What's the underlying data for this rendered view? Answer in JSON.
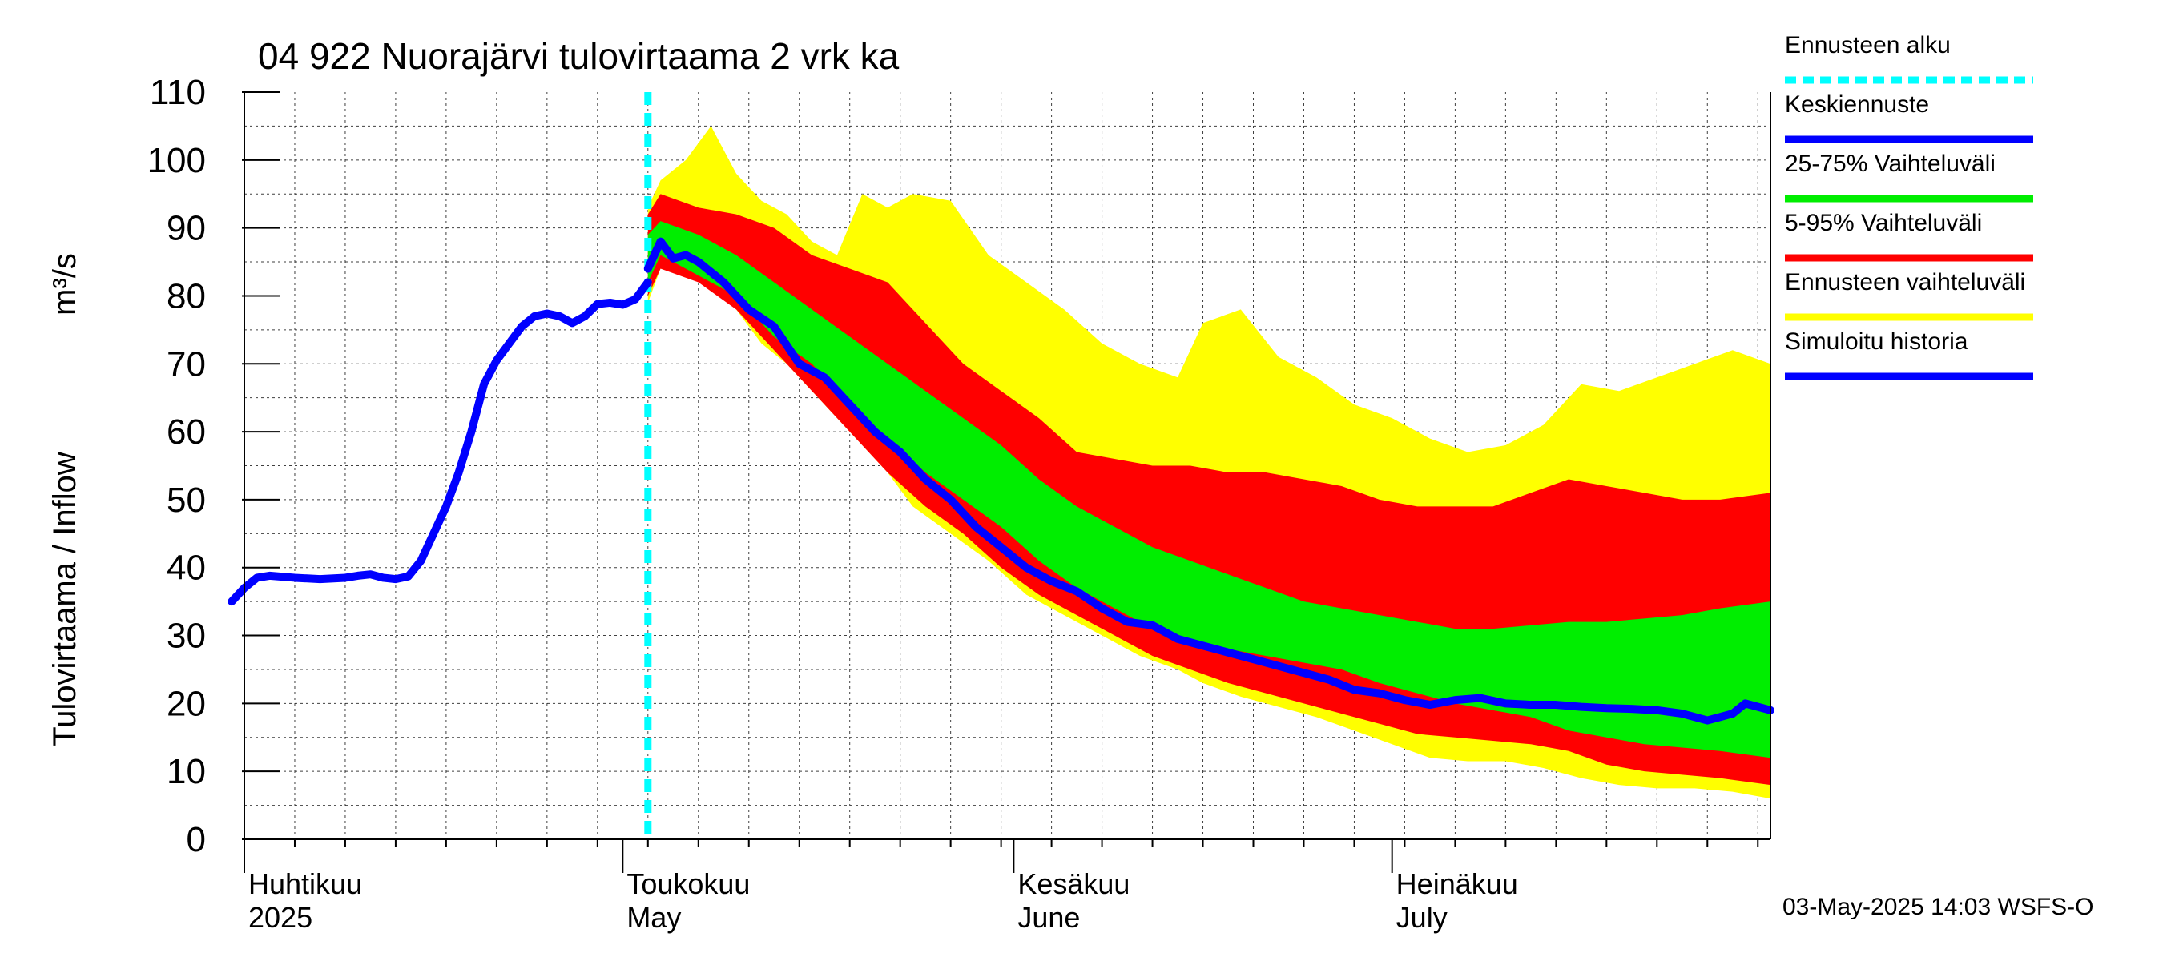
{
  "chart_data": {
    "type": "area",
    "title": "04 922 Nuorajärvi tulovirtaama 2 vrk ka",
    "ylabel": "Tulovirtaama / Inflow",
    "yunit": "m³/s",
    "ylim": [
      0,
      110
    ],
    "yticks": [
      0,
      10,
      20,
      30,
      40,
      50,
      60,
      70,
      80,
      90,
      100,
      110
    ],
    "xlim": [
      "2025-04-01",
      "2025-07-31"
    ],
    "month_ticks": [
      {
        "date": "2025-04-01",
        "fi": "Huhtikuu",
        "en": "2025"
      },
      {
        "date": "2025-05-01",
        "fi": "Toukokuu",
        "en": "May"
      },
      {
        "date": "2025-06-01",
        "fi": "Kesäkuu",
        "en": "June"
      },
      {
        "date": "2025-07-01",
        "fi": "Heinäkuu",
        "en": "July"
      }
    ],
    "forecast_start": "2025-05-03",
    "grid": true,
    "legend_position": "right",
    "series": [
      {
        "name": "Simuloitu historia",
        "kind": "line",
        "color": "#0000ff",
        "points": [
          [
            "2025-03-31",
            35
          ],
          [
            "2025-04-01",
            37
          ],
          [
            "2025-04-02",
            38.5
          ],
          [
            "2025-04-03",
            38.8
          ],
          [
            "2025-04-05",
            38.5
          ],
          [
            "2025-04-07",
            38.3
          ],
          [
            "2025-04-09",
            38.5
          ],
          [
            "2025-04-10",
            38.8
          ],
          [
            "2025-04-11",
            39
          ],
          [
            "2025-04-12",
            38.5
          ],
          [
            "2025-04-13",
            38.3
          ],
          [
            "2025-04-14",
            38.7
          ],
          [
            "2025-04-15",
            41
          ],
          [
            "2025-04-16",
            45
          ],
          [
            "2025-04-17",
            49
          ],
          [
            "2025-04-18",
            54
          ],
          [
            "2025-04-19",
            60
          ],
          [
            "2025-04-20",
            67
          ],
          [
            "2025-04-21",
            70.5
          ],
          [
            "2025-04-22",
            73
          ],
          [
            "2025-04-23",
            75.5
          ],
          [
            "2025-04-24",
            77
          ],
          [
            "2025-04-25",
            77.4
          ],
          [
            "2025-04-26",
            77
          ],
          [
            "2025-04-27",
            76
          ],
          [
            "2025-04-28",
            77
          ],
          [
            "2025-04-29",
            78.8
          ],
          [
            "2025-04-30",
            79
          ],
          [
            "2025-05-01",
            78.7
          ],
          [
            "2025-05-02",
            79.5
          ],
          [
            "2025-05-03",
            82
          ]
        ]
      },
      {
        "name": "Keskiennuste",
        "kind": "line",
        "color": "#0000ff",
        "points": [
          [
            "2025-05-03",
            84
          ],
          [
            "2025-05-04",
            88
          ],
          [
            "2025-05-05",
            85.5
          ],
          [
            "2025-05-06",
            86
          ],
          [
            "2025-05-07",
            85
          ],
          [
            "2025-05-09",
            82
          ],
          [
            "2025-05-11",
            78
          ],
          [
            "2025-05-13",
            75.5
          ],
          [
            "2025-05-15",
            70
          ],
          [
            "2025-05-17",
            68
          ],
          [
            "2025-05-19",
            64
          ],
          [
            "2025-05-21",
            60
          ],
          [
            "2025-05-23",
            57
          ],
          [
            "2025-05-25",
            53
          ],
          [
            "2025-05-27",
            50
          ],
          [
            "2025-05-29",
            46
          ],
          [
            "2025-05-31",
            43
          ],
          [
            "2025-06-02",
            40
          ],
          [
            "2025-06-04",
            38
          ],
          [
            "2025-06-06",
            36.5
          ],
          [
            "2025-06-08",
            34
          ],
          [
            "2025-06-10",
            32
          ],
          [
            "2025-06-12",
            31.5
          ],
          [
            "2025-06-14",
            29.5
          ],
          [
            "2025-06-16",
            28.5
          ],
          [
            "2025-06-18",
            27.5
          ],
          [
            "2025-06-20",
            26.5
          ],
          [
            "2025-06-22",
            25.5
          ],
          [
            "2025-06-24",
            24.5
          ],
          [
            "2025-06-26",
            23.5
          ],
          [
            "2025-06-28",
            22
          ],
          [
            "2025-06-30",
            21.5
          ],
          [
            "2025-07-02",
            20.5
          ],
          [
            "2025-07-04",
            19.8
          ],
          [
            "2025-07-06",
            20.5
          ],
          [
            "2025-07-08",
            20.8
          ],
          [
            "2025-07-10",
            20
          ],
          [
            "2025-07-12",
            19.8
          ],
          [
            "2025-07-14",
            19.8
          ],
          [
            "2025-07-16",
            19.5
          ],
          [
            "2025-07-18",
            19.3
          ],
          [
            "2025-07-20",
            19.2
          ],
          [
            "2025-07-22",
            19
          ],
          [
            "2025-07-24",
            18.5
          ],
          [
            "2025-07-26",
            17.5
          ],
          [
            "2025-07-28",
            18.5
          ],
          [
            "2025-07-29",
            20
          ],
          [
            "2025-07-31",
            19
          ]
        ]
      },
      {
        "name": "25-75% Vaihteluväli",
        "kind": "band",
        "color": "#00ee00",
        "dates": [
          "2025-05-03",
          "2025-05-04",
          "2025-05-07",
          "2025-05-10",
          "2025-05-13",
          "2025-05-16",
          "2025-05-19",
          "2025-05-22",
          "2025-05-25",
          "2025-05-28",
          "2025-05-31",
          "2025-06-03",
          "2025-06-06",
          "2025-06-09",
          "2025-06-12",
          "2025-06-15",
          "2025-06-18",
          "2025-06-21",
          "2025-06-24",
          "2025-06-27",
          "2025-06-30",
          "2025-07-03",
          "2025-07-06",
          "2025-07-09",
          "2025-07-12",
          "2025-07-15",
          "2025-07-18",
          "2025-07-21",
          "2025-07-24",
          "2025-07-27",
          "2025-07-31"
        ],
        "low": [
          82,
          86,
          83,
          80,
          74,
          70,
          64,
          59,
          54,
          50,
          46,
          41,
          37,
          34,
          31,
          29,
          28,
          27,
          26,
          25,
          23,
          21.5,
          20,
          19,
          18,
          16,
          15,
          14,
          13.5,
          13,
          12
        ],
        "high": [
          89,
          91,
          89,
          86,
          82,
          78,
          74,
          70,
          66,
          62,
          58,
          53,
          49,
          46,
          43,
          41,
          39,
          37,
          35,
          34,
          33,
          32,
          31,
          31,
          31.5,
          32,
          32,
          32.5,
          33,
          34,
          35
        ]
      },
      {
        "name": "5-95% Vaihteluväli",
        "kind": "band",
        "color": "#ff0000",
        "dates": [
          "2025-05-03",
          "2025-05-04",
          "2025-05-07",
          "2025-05-10",
          "2025-05-13",
          "2025-05-16",
          "2025-05-19",
          "2025-05-22",
          "2025-05-25",
          "2025-05-28",
          "2025-05-31",
          "2025-06-03",
          "2025-06-06",
          "2025-06-09",
          "2025-06-12",
          "2025-06-15",
          "2025-06-18",
          "2025-06-21",
          "2025-06-24",
          "2025-06-27",
          "2025-06-30",
          "2025-07-03",
          "2025-07-06",
          "2025-07-09",
          "2025-07-12",
          "2025-07-15",
          "2025-07-18",
          "2025-07-21",
          "2025-07-24",
          "2025-07-27",
          "2025-07-31"
        ],
        "low": [
          80,
          84,
          82,
          78,
          72,
          66,
          60,
          54,
          49,
          45,
          40,
          36,
          33,
          30,
          27,
          25,
          23,
          21.5,
          20,
          18.5,
          17,
          15.5,
          15,
          14.5,
          14,
          13,
          11,
          10,
          9.5,
          9,
          8
        ],
        "high": [
          92,
          95,
          93,
          92,
          90,
          86,
          84,
          82,
          76,
          70,
          66,
          62,
          57,
          56,
          55,
          55,
          54,
          54,
          53,
          52,
          50,
          49,
          49,
          49,
          51,
          53,
          52,
          51,
          50,
          50,
          51
        ]
      },
      {
        "name": "Ennusteen vaihteluväli",
        "kind": "band",
        "color": "#ffff00",
        "dates": [
          "2025-05-03",
          "2025-05-04",
          "2025-05-06",
          "2025-05-08",
          "2025-05-10",
          "2025-05-12",
          "2025-05-14",
          "2025-05-16",
          "2025-05-18",
          "2025-05-20",
          "2025-05-22",
          "2025-05-24",
          "2025-05-27",
          "2025-05-30",
          "2025-06-02",
          "2025-06-05",
          "2025-06-08",
          "2025-06-11",
          "2025-06-14",
          "2025-06-16",
          "2025-06-19",
          "2025-06-22",
          "2025-06-25",
          "2025-06-28",
          "2025-07-01",
          "2025-07-04",
          "2025-07-07",
          "2025-07-10",
          "2025-07-13",
          "2025-07-16",
          "2025-07-19",
          "2025-07-22",
          "2025-07-25",
          "2025-07-28",
          "2025-07-31"
        ],
        "low": [
          79,
          84,
          83,
          82,
          78,
          73,
          70,
          66,
          62,
          58,
          54,
          49,
          45,
          41,
          36,
          33,
          30,
          27,
          25,
          23,
          21,
          19.5,
          18,
          16,
          14,
          12,
          11.5,
          11.5,
          10.5,
          9,
          8,
          7.5,
          7.5,
          7,
          6
        ],
        "high": [
          93,
          97,
          100,
          105,
          98,
          94,
          92,
          88,
          86,
          95,
          93,
          95,
          94,
          86,
          82,
          78,
          73,
          70,
          68,
          76,
          78,
          71,
          68,
          64,
          62,
          59,
          57,
          58,
          61,
          67,
          66,
          68,
          70,
          72,
          70
        ]
      }
    ]
  },
  "legend": [
    {
      "label": "Ennusteen alku",
      "color": "#00ffff",
      "dashed": true
    },
    {
      "label": "Keskiennuste",
      "color": "#0000ff",
      "dashed": false
    },
    {
      "label": "25-75% Vaihteluväli",
      "color": "#00ee00",
      "dashed": false
    },
    {
      "label": "5-95% Vaihteluväli",
      "color": "#ff0000",
      "dashed": false
    },
    {
      "label": "Ennusteen vaihteluväli",
      "color": "#ffff00",
      "dashed": false
    },
    {
      "label": "Simuloitu historia",
      "color": "#0000ff",
      "dashed": false
    }
  ],
  "footer": "03-May-2025 14:03 WSFS-O"
}
